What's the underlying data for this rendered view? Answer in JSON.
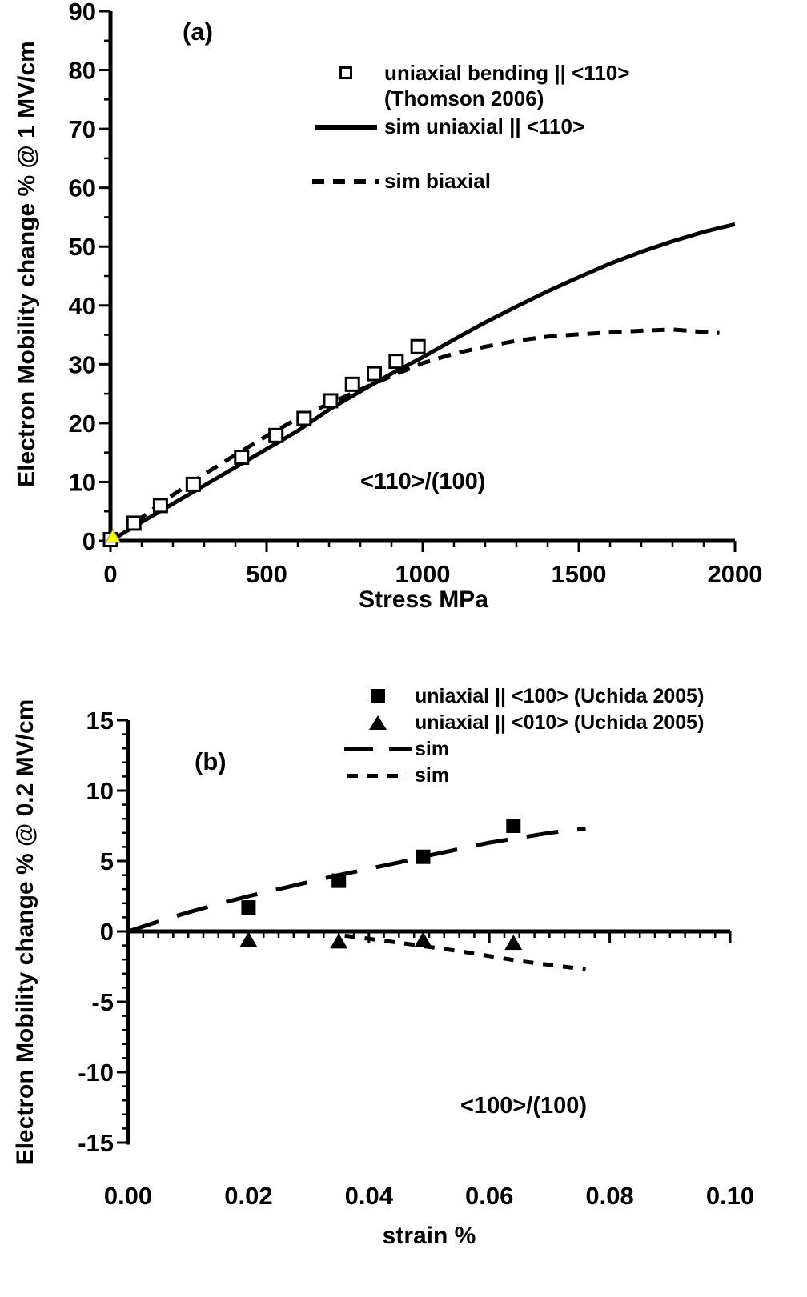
{
  "figure": {
    "panels": [
      {
        "label": "(a)"
      },
      {
        "label": "(b)"
      }
    ]
  },
  "chart_data": [
    {
      "id": "a",
      "type": "line",
      "title": "",
      "xlabel": "Stress MPa",
      "ylabel": "Electron Mobility change % @ 1 MV/cm",
      "xlim": [
        0,
        2000
      ],
      "ylim": [
        0,
        90
      ],
      "xticks": [
        0,
        500,
        1000,
        1500,
        2000
      ],
      "xtick_labels": [
        "0",
        "500",
        "1000",
        "1500",
        "2000"
      ],
      "x_minor_step": 100,
      "yticks": [
        0,
        10,
        20,
        30,
        40,
        50,
        60,
        70,
        80,
        90
      ],
      "ytick_labels": [
        "0",
        "10",
        "20",
        "30",
        "40",
        "50",
        "60",
        "70",
        "80",
        "90"
      ],
      "y_minor_step": 5,
      "grid": false,
      "annotation": "<110>/(100)",
      "legend_position": "upper-left-inside",
      "legend": [
        {
          "symbol": "open-square",
          "label": "uniaxial bending || <110>",
          "label2": "(Thomson 2006)"
        },
        {
          "symbol": "solid-line",
          "label": "sim uniaxial  || <110>"
        },
        {
          "symbol": "dashed-line",
          "label": "sim biaxial"
        }
      ],
      "series": [
        {
          "name": "sim uniaxial || <110>",
          "style": "line",
          "dash": "solid",
          "color": "#000000",
          "x": [
            0,
            100,
            200,
            300,
            400,
            500,
            600,
            700,
            800,
            900,
            1000,
            1100,
            1200,
            1300,
            1400,
            1500,
            1600,
            1700,
            1800,
            1900,
            2000
          ],
          "y": [
            0,
            3.2,
            6.3,
            9.4,
            12.5,
            15.6,
            18.7,
            22.3,
            25.4,
            28.4,
            31.2,
            34.2,
            37.1,
            39.8,
            42.4,
            44.8,
            47.1,
            49.1,
            50.9,
            52.5,
            53.8
          ]
        },
        {
          "name": "sim biaxial",
          "style": "line",
          "dash": "dashed",
          "color": "#000000",
          "x": [
            80,
            200,
            300,
            400,
            500,
            600,
            700,
            800,
            900,
            1000,
            1100,
            1200,
            1300,
            1400,
            1500,
            1600,
            1700,
            1800,
            1900,
            1950
          ],
          "y": [
            3.2,
            7.8,
            11.3,
            14.6,
            17.8,
            20.8,
            23.3,
            25.7,
            28.0,
            30.2,
            31.8,
            33.0,
            34.0,
            34.7,
            35.1,
            35.4,
            35.7,
            35.9,
            35.5,
            35.3
          ]
        },
        {
          "name": "uniaxial bending || <110> (Thomson 2006)",
          "style": "scatter",
          "marker": "open-square",
          "x": [
            0,
            75,
            160,
            265,
            420,
            530,
            620,
            705,
            775,
            845,
            915,
            985
          ],
          "y": [
            0.2,
            3.0,
            6.0,
            9.6,
            14.2,
            17.9,
            20.8,
            23.8,
            26.6,
            28.4,
            30.5,
            33.0
          ]
        },
        {
          "name": "origin marker",
          "style": "scatter",
          "marker": "yellow-triangle",
          "color": "#ffff00",
          "x": [
            8
          ],
          "y": [
            0.7
          ]
        }
      ]
    },
    {
      "id": "b",
      "type": "line",
      "title": "",
      "xlabel": "strain %",
      "ylabel": "Electron Mobility change % @ 0.2 MV/cm",
      "xlim": [
        0,
        0.1
      ],
      "ylim": [
        -15,
        15
      ],
      "xticks": [
        0,
        0.02,
        0.04,
        0.06,
        0.08,
        0.1
      ],
      "xtick_labels": [
        "0.00",
        "0.02",
        "0.04",
        "0.06",
        "0.08",
        "0.10"
      ],
      "x_minor_step": 0.0025,
      "yticks": [
        -15,
        -10,
        -5,
        0,
        5,
        10,
        15
      ],
      "ytick_labels": [
        "-15",
        "-10",
        "-5",
        "0",
        "5",
        "10",
        "15"
      ],
      "y_minor_step": 1,
      "grid": false,
      "annotation": "<100>/(100)",
      "legend_position": "upper-right-inside",
      "legend": [
        {
          "symbol": "filled-square",
          "label": "uniaxial || <100> (Uchida 2005)"
        },
        {
          "symbol": "filled-triangle",
          "label": "uniaxial || <010> (Uchida 2005)"
        },
        {
          "symbol": "long-dash-line",
          "label": "sim"
        },
        {
          "symbol": "short-dash-line",
          "label": "sim"
        }
      ],
      "series": [
        {
          "name": "sim <100>",
          "style": "line",
          "dash": "long-dash",
          "color": "#000000",
          "x": [
            0,
            0.005,
            0.01,
            0.015,
            0.02,
            0.025,
            0.03,
            0.035,
            0.04,
            0.045,
            0.05,
            0.055,
            0.06,
            0.065,
            0.07,
            0.076
          ],
          "y": [
            0,
            0.7,
            1.35,
            1.95,
            2.5,
            3.0,
            3.5,
            4.0,
            4.45,
            4.9,
            5.4,
            5.85,
            6.3,
            6.65,
            7.0,
            7.3
          ]
        },
        {
          "name": "sim <010>",
          "style": "line",
          "dash": "short-dash",
          "color": "#000000",
          "x": [
            0.036,
            0.045,
            0.055,
            0.065,
            0.076
          ],
          "y": [
            -0.3,
            -0.8,
            -1.4,
            -2.1,
            -2.7
          ]
        },
        {
          "name": "uniaxial || <100> (Uchida 2005)",
          "style": "scatter",
          "marker": "filled-square",
          "x": [
            0.02,
            0.035,
            0.049,
            0.064
          ],
          "y": [
            1.7,
            3.6,
            5.3,
            7.5
          ]
        },
        {
          "name": "uniaxial || <010> (Uchida 2005)",
          "style": "scatter",
          "marker": "filled-triangle",
          "x": [
            0.02,
            0.035,
            0.049,
            0.064
          ],
          "y": [
            -0.6,
            -0.7,
            -0.6,
            -0.8
          ]
        }
      ]
    }
  ]
}
